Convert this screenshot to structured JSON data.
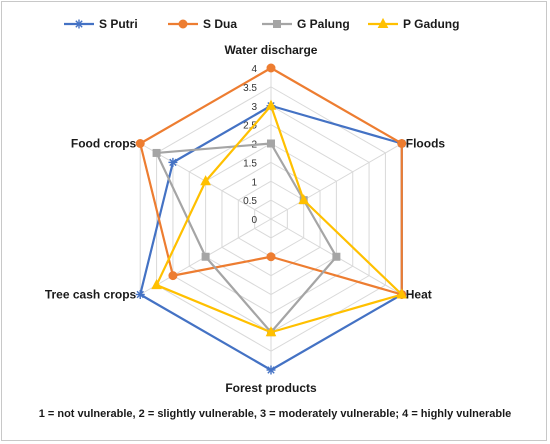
{
  "chart_data": {
    "type": "radar",
    "categories": [
      "Water discharge",
      "Floods",
      "Heat",
      "Forest products",
      "Tree cash crops",
      "Food crops"
    ],
    "ticks": [
      "0",
      "0.5",
      "1",
      "1.5",
      "2",
      "2.5",
      "3",
      "3.5",
      "4"
    ],
    "rlim": [
      0,
      4
    ],
    "grid": true,
    "legend_position": "top",
    "series": [
      {
        "name": "S Putri",
        "color": "#4472C4",
        "marker": "star",
        "values": [
          3,
          4,
          4,
          4,
          4,
          3
        ]
      },
      {
        "name": "S Dua",
        "color": "#ED7D31",
        "marker": "circle",
        "values": [
          4,
          4,
          4,
          1,
          3,
          4
        ]
      },
      {
        "name": "G Palung",
        "color": "#A5A5A5",
        "marker": "square",
        "values": [
          2,
          1,
          2,
          3,
          2,
          3.5
        ]
      },
      {
        "name": "P Gadung",
        "color": "#FFC000",
        "marker": "triangle",
        "values": [
          3,
          1,
          4,
          3,
          3.5,
          2
        ]
      }
    ],
    "footnote": "1 = not vulnerable, 2 = slightly vulnerable, 3 = moderately vulnerable; 4 = highly vulnerable"
  }
}
